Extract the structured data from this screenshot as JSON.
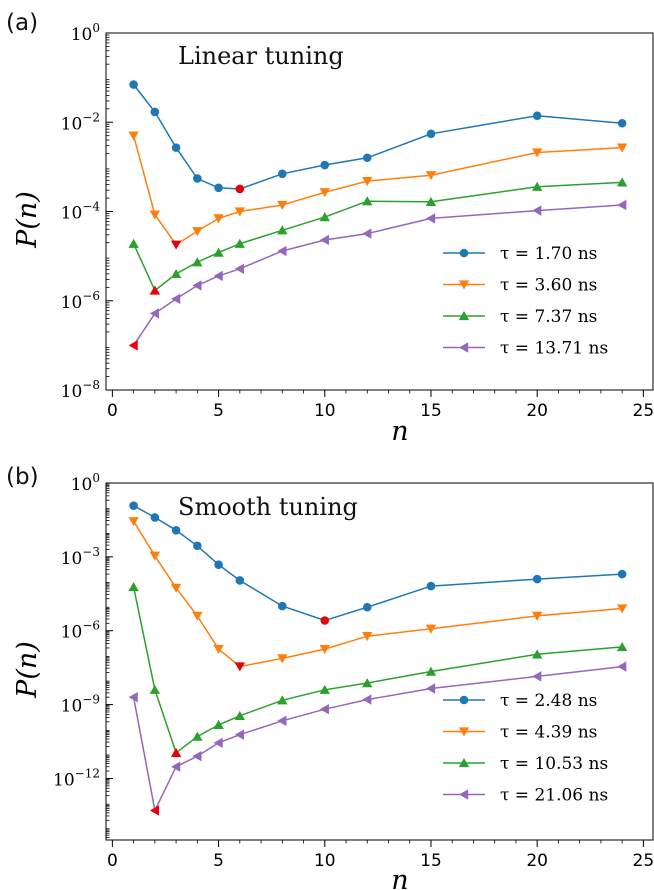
{
  "chart_data": [
    {
      "panel_label": "(a)",
      "type": "line",
      "title": "Linear tuning",
      "xlabel": "n",
      "ylabel": "P(n)",
      "y_scale": "log",
      "xlim": [
        -0.3,
        25.5
      ],
      "ylim_exp": [
        -8,
        0
      ],
      "xticks": [
        "0",
        "5",
        "10",
        "15",
        "20",
        "25"
      ],
      "xtick_values": [
        0,
        5,
        10,
        15,
        20,
        25
      ],
      "ytick_exps": [
        -8,
        -6,
        -4,
        -2,
        0
      ],
      "legend_placement": "lower-right",
      "series": [
        {
          "name": "τ = 1.70 ns",
          "color": "#1f77b4",
          "marker": "circle",
          "x": [
            1,
            2,
            3,
            4,
            5,
            6,
            8,
            10,
            12,
            15,
            20,
            24
          ],
          "y": [
            0.07,
            0.017,
            0.0027,
            0.00055,
            0.00034,
            0.00032,
            0.0007,
            0.0011,
            0.0016,
            0.0055,
            0.014,
            0.0095
          ],
          "min_index": 5
        },
        {
          "name": "τ = 3.60 ns",
          "color": "#ff7f0e",
          "marker": "triangle-down",
          "x": [
            1,
            2,
            3,
            4,
            5,
            6,
            8,
            10,
            12,
            15,
            20,
            24
          ],
          "y": [
            0.005,
            8.5e-05,
            1.8e-05,
            3.6e-05,
            7e-05,
            0.0001,
            0.00014,
            0.00027,
            0.00048,
            0.00065,
            0.0021,
            0.0027
          ],
          "min_index": 2
        },
        {
          "name": "τ = 7.37 ns",
          "color": "#2ca02c",
          "marker": "triangle-up",
          "x": [
            1,
            2,
            3,
            4,
            5,
            6,
            8,
            10,
            12,
            15,
            20,
            24
          ],
          "y": [
            1.9e-05,
            1.7e-06,
            4e-06,
            7.3e-06,
            1.2e-05,
            1.9e-05,
            3.8e-05,
            7.5e-05,
            0.00017,
            0.000165,
            0.00036,
            0.00045
          ],
          "min_index": 1
        },
        {
          "name": "τ = 13.71 ns",
          "color": "#9467bd",
          "marker": "triangle-left",
          "x": [
            1,
            2,
            3,
            4,
            5,
            6,
            8,
            10,
            12,
            15,
            20,
            24
          ],
          "y": [
            1e-07,
            5.2e-07,
            1.1e-06,
            2.2e-06,
            3.6e-06,
            5.2e-06,
            1.3e-05,
            2.3e-05,
            3.2e-05,
            7e-05,
            0.000105,
            0.00014
          ],
          "min_index": 0
        }
      ]
    },
    {
      "panel_label": "(b)",
      "type": "line",
      "title": "Smooth tuning",
      "xlabel": "n",
      "ylabel": "P(n)",
      "y_scale": "log",
      "xlim": [
        -0.3,
        25.5
      ],
      "ylim_exp": [
        -14.5,
        0
      ],
      "xticks": [
        "0",
        "5",
        "10",
        "15",
        "20",
        "25"
      ],
      "xtick_values": [
        0,
        5,
        10,
        15,
        20,
        25
      ],
      "ytick_exps": [
        -12,
        -9,
        -6,
        -3,
        0
      ],
      "legend_placement": "lower-right",
      "series": [
        {
          "name": "τ = 2.48 ns",
          "color": "#1f77b4",
          "marker": "circle",
          "x": [
            1,
            2,
            3,
            4,
            5,
            6,
            8,
            10,
            12,
            15,
            20,
            24
          ],
          "y": [
            0.12,
            0.04,
            0.012,
            0.0028,
            0.00048,
            0.00011,
            1e-05,
            2.6e-06,
            9e-06,
            6.5e-05,
            0.000125,
            0.0002
          ],
          "min_index": 7
        },
        {
          "name": "τ = 4.39 ns",
          "color": "#ff7f0e",
          "marker": "triangle-down",
          "x": [
            1,
            2,
            3,
            4,
            5,
            6,
            8,
            10,
            12,
            15,
            20,
            24
          ],
          "y": [
            0.028,
            0.0011,
            5.5e-05,
            4e-06,
            1.8e-07,
            3.5e-08,
            7.5e-08,
            1.8e-07,
            6e-07,
            1.2e-06,
            4e-06,
            8e-06
          ],
          "min_index": 5
        },
        {
          "name": "τ = 10.53 ns",
          "color": "#2ca02c",
          "marker": "triangle-up",
          "x": [
            1,
            2,
            3,
            4,
            5,
            6,
            8,
            10,
            12,
            15,
            20,
            24
          ],
          "y": [
            6e-05,
            4e-09,
            1.1e-11,
            5e-11,
            1.5e-10,
            3.5e-10,
            1.5e-09,
            4e-09,
            7.5e-09,
            2.2e-08,
            1.1e-07,
            2.2e-07
          ],
          "min_index": 2
        },
        {
          "name": "τ = 21.06 ns",
          "color": "#9467bd",
          "marker": "triangle-left",
          "x": [
            1,
            2,
            3,
            4,
            5,
            6,
            8,
            10,
            12,
            15,
            20,
            24
          ],
          "y": [
            2e-09,
            5e-14,
            3e-12,
            8e-12,
            2.8e-11,
            6e-11,
            2.2e-10,
            6.5e-10,
            1.6e-09,
            4.5e-09,
            1.4e-08,
            3.5e-08
          ],
          "min_index": 1
        }
      ]
    }
  ]
}
